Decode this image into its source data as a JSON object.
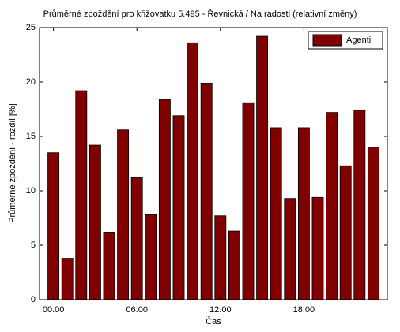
{
  "chart_data": {
    "type": "bar",
    "title": "Průměrné zpoždění pro křižovatku 5.495 - Řevnická / Na radosti (relativní změny)",
    "x_label": "Čas",
    "y_label": "Průměrné zpoždění - rozdíl [%]",
    "categories": [
      "00:00",
      null,
      null,
      null,
      null,
      null,
      "06:00",
      null,
      null,
      null,
      null,
      null,
      "12:00",
      null,
      null,
      null,
      null,
      null,
      "18:00",
      null,
      null,
      null,
      null,
      null
    ],
    "series": [
      {
        "name": "Agenti",
        "color": "#800000",
        "values": [
          13.5,
          3.8,
          19.2,
          14.2,
          6.2,
          15.6,
          11.2,
          7.8,
          18.4,
          16.9,
          23.6,
          19.9,
          7.7,
          6.3,
          18.1,
          24.2,
          15.8,
          9.3,
          15.8,
          9.4,
          17.2,
          12.3,
          17.4,
          14.0
        ]
      }
    ],
    "ylim": [
      0,
      25
    ],
    "yticks": [
      0,
      5,
      10,
      15,
      20,
      25
    ],
    "legend": "top-right"
  }
}
